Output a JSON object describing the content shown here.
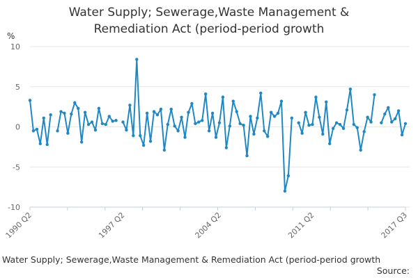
{
  "header": {
    "title_line1": "Water Supply; Sewerage,Waste Management &",
    "title_line2": "Remediation Act (period-period growth"
  },
  "footer": {
    "title": "Water Supply; Sewerage,Waste Management & Remediation Act (period-period growth",
    "source": "Source:"
  },
  "chart_data": {
    "type": "line",
    "title": "Water Supply; Sewerage,Waste Management & Remediation Act (period-period growth",
    "ylabel": "%",
    "ylim": [
      -10,
      10
    ],
    "yticks": [
      "10",
      "5",
      "0",
      "-5",
      "-10"
    ],
    "xtick_labels": [
      "1990 Q2",
      "1997 Q2",
      "2004 Q2",
      "2011 Q2",
      "2017 Q3"
    ],
    "grid": "horizontal",
    "line_color": "#1f88c4",
    "series": [
      {
        "values": [
          3.3,
          -0.5,
          -0.3,
          -2.1,
          1.1,
          -2.2,
          1.5,
          null,
          -0.5,
          1.9,
          1.7,
          -0.8,
          1.6,
          3.0,
          2.3,
          -1.9,
          1.8,
          0.3,
          0.6,
          -0.4,
          2.3,
          0.4,
          0.3,
          1.3,
          0.7,
          0.8,
          null,
          0.6,
          -0.4,
          2.7,
          -1.1,
          8.4,
          -1.1,
          -2.3,
          1.7,
          -1.8,
          1.9,
          1.5,
          2.2,
          -2.9,
          0.3,
          2.2,
          0.1,
          -0.5,
          1.2,
          -1.3,
          1.8,
          2.9,
          0.4,
          0.6,
          0.8,
          4.1,
          -0.5,
          1.7,
          -1.3,
          0.5,
          3.7,
          -2.6,
          0.1,
          3.2,
          1.9,
          0.4,
          0.2,
          -3.6,
          1.3,
          -0.9,
          1.1,
          4.2,
          -0.5,
          -1.2,
          1.8,
          1.3,
          1.7,
          3.2,
          -8.0,
          -6.1,
          1.1,
          null,
          0.5,
          -0.8,
          1.8,
          0.2,
          0.3,
          3.7,
          1.2,
          -0.9,
          3.1,
          -2.1,
          -0.2,
          0.5,
          0.3,
          -0.2,
          2.1,
          4.7,
          0.3,
          -0.1,
          -2.9,
          -0.6,
          1.2,
          0.6,
          4.0,
          null,
          0.5,
          1.6,
          2.4,
          0.6,
          1.0,
          2.0,
          -1.0,
          0.4
        ]
      }
    ]
  }
}
